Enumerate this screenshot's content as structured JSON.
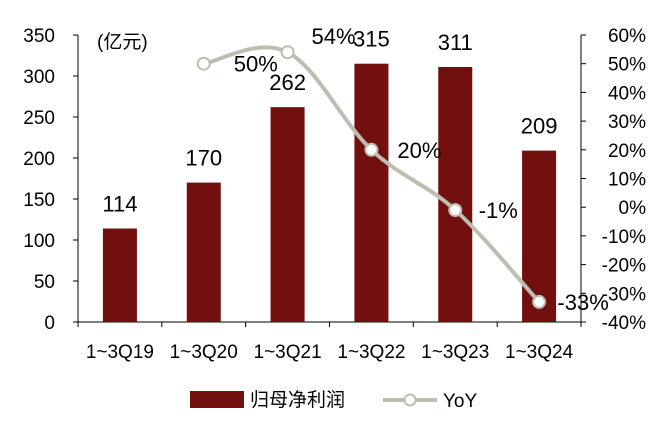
{
  "chart_data": {
    "type": "bar",
    "unit_label": "(亿元)",
    "categories": [
      "1~3Q19",
      "1~3Q20",
      "1~3Q21",
      "1~3Q22",
      "1~3Q23",
      "1~3Q24"
    ],
    "series": [
      {
        "name": "归母净利润",
        "kind": "bar",
        "axis": "left",
        "values": [
          114,
          170,
          262,
          315,
          311,
          209
        ],
        "data_labels": [
          "114",
          "170",
          "262",
          "315",
          "311",
          "209"
        ]
      },
      {
        "name": "YoY",
        "kind": "line",
        "axis": "right",
        "values": [
          null,
          50,
          54,
          20,
          -1,
          -33
        ],
        "data_labels": [
          "",
          "50%",
          "54%",
          "20%",
          "-1%",
          "-33%"
        ]
      }
    ],
    "y_left": {
      "min": 0,
      "max": 350,
      "step": 50,
      "ticks": [
        "0",
        "50",
        "100",
        "150",
        "200",
        "250",
        "300",
        "350"
      ]
    },
    "y_right": {
      "min": -40,
      "max": 60,
      "step": 10,
      "ticks": [
        "-40%",
        "-30%",
        "-20%",
        "-10%",
        "0%",
        "10%",
        "20%",
        "30%",
        "40%",
        "50%",
        "60%"
      ]
    },
    "grid": false,
    "legend_position": "bottom",
    "colors": {
      "bar": "#720f0f",
      "line": "#bdbdb1",
      "marker_fill": "#ffffff",
      "axis": "#000000"
    }
  }
}
